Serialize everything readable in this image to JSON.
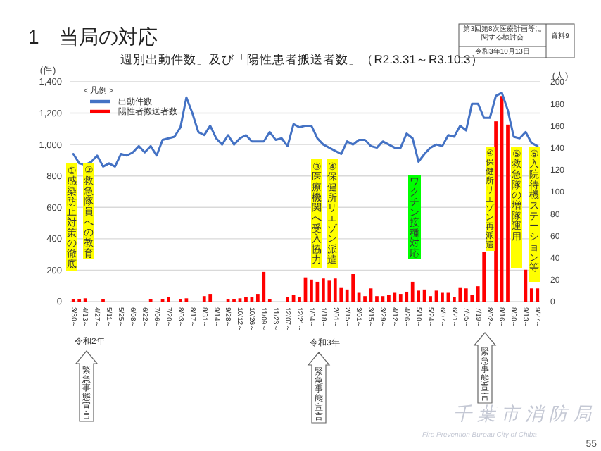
{
  "chart_data": {
    "type": "bar",
    "title": "1　当局の対応",
    "subtitle": "「週別出動件数」及び「陽性患者搬送者数」（R2.3.31～R3.10.3）",
    "ylabel": "(件)",
    "y2label": "(人)",
    "legend_title": "＜凡例＞",
    "categories": [
      "3/30～",
      null,
      "4/13～",
      null,
      "4/27～",
      null,
      "5/11～",
      null,
      "5/25～",
      null,
      "6/08～",
      null,
      "6/22～",
      null,
      "7/06～",
      null,
      "7/20～",
      null,
      "8/03～",
      null,
      "8/17～",
      null,
      "8/31～",
      null,
      "9/14～",
      null,
      "9/28～",
      null,
      "10/12～",
      null,
      "10/26～",
      null,
      "11/09～",
      null,
      "11/23～",
      null,
      "12/07～",
      null,
      "12/21～",
      null,
      "1/04～",
      null,
      "1/18～",
      null,
      "2/01～",
      null,
      "2/15～",
      null,
      "3/01～",
      null,
      "3/15～",
      null,
      "3/29～",
      null,
      "4/12～",
      null,
      "4/26～",
      null,
      "5/10～",
      null,
      "5/24～",
      null,
      "6/07～",
      null,
      "6/21～",
      null,
      "7/05～",
      null,
      "7/19～",
      null,
      "8/02～",
      null,
      "8/16～",
      null,
      "8/30～",
      null,
      "9/13～",
      null,
      "9/27～"
    ],
    "series": [
      {
        "name": "陽性者搬送者数",
        "axis": "y2",
        "color": "#ff0000",
        "values": [
          2,
          2,
          3,
          0,
          0,
          2,
          0,
          0,
          0,
          0,
          0,
          0,
          0,
          2,
          0,
          2,
          4,
          0,
          2,
          3,
          0,
          0,
          5,
          7,
          0,
          0,
          2,
          2,
          3,
          4,
          4,
          7,
          27,
          2,
          0,
          0,
          4,
          6,
          4,
          22,
          20,
          18,
          21,
          19,
          21,
          13,
          11,
          25,
          8,
          5,
          12,
          5,
          5,
          6,
          8,
          7,
          9,
          18,
          10,
          11,
          5,
          10,
          8,
          8,
          4,
          13,
          12,
          6,
          14,
          45,
          null,
          164,
          187,
          161,
          null,
          null,
          29,
          12,
          12
        ]
      },
      {
        "name": "出動件数",
        "type": "line",
        "axis": "y",
        "color": "#4472c4",
        "values": [
          940,
          880,
          870,
          890,
          930,
          860,
          880,
          860,
          940,
          930,
          950,
          990,
          950,
          990,
          930,
          1030,
          1040,
          1050,
          1110,
          1300,
          1200,
          1080,
          1060,
          1120,
          1040,
          1000,
          1060,
          1000,
          1040,
          1060,
          1020,
          1020,
          1020,
          1080,
          1030,
          1040,
          990,
          1130,
          1110,
          1120,
          1120,
          1040,
          1000,
          980,
          960,
          940,
          1020,
          1000,
          1030,
          1030,
          990,
          980,
          1020,
          1000,
          980,
          980,
          1070,
          1040,
          890,
          940,
          980,
          1000,
          990,
          1060,
          1050,
          1120,
          1090,
          1260,
          1260,
          1170,
          1170,
          1310,
          1330,
          1220,
          1050,
          1040,
          1080,
          1010,
          990
        ]
      }
    ],
    "ylim": [
      0,
      1400
    ],
    "yticks": [
      0,
      200,
      400,
      600,
      800,
      {
        "value": 1000,
        "label": "1,000"
      },
      {
        "value": 1200,
        "label": "1,200"
      },
      {
        "value": 1400,
        "label": "1,400"
      }
    ],
    "y2lim": [
      0,
      200
    ],
    "y2ticks": [
      0,
      20,
      40,
      60,
      80,
      100,
      120,
      140,
      160,
      180,
      200
    ],
    "grid": "y",
    "legend": "top left",
    "annotations": [
      "第3回第8次医療計画等に関する検討会",
      "令和3年10月13日",
      "資料9",
      "①感染防止対策の徹底",
      "②救急隊員への教育",
      "③医療機関へ受入協力",
      "④保健所リエゾン派遣",
      "ワクチン接種対応",
      "④保健所リエゾン再派遣",
      "⑤救急隊の増隊運用",
      "⑥入院待機ステーション等",
      "令和2年",
      "令和3年",
      "緊急事態宣言",
      "緊急事態宣言",
      "緊急事態宣言",
      "千葉市消防局",
      "Fire Prevention Bureau City of Chiba",
      "55"
    ]
  }
}
